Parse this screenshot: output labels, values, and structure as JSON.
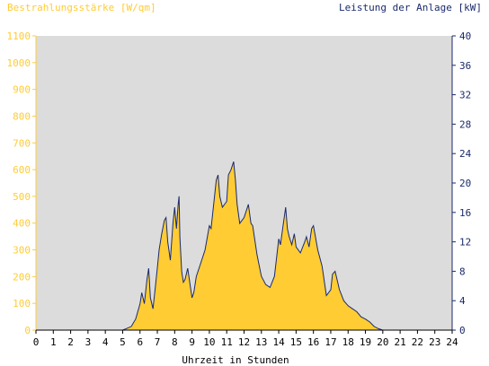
{
  "colors": {
    "left_axis": "#ffcc33",
    "right_axis": "#1a2a6c",
    "fill": "#ffcc33",
    "line": "#1a2a6c",
    "plot_bg": "#dcdcdc",
    "x_axis": "#000000"
  },
  "chart_data": {
    "type": "area",
    "title": "",
    "left_ylabel": "Bestrahlungsstärke [W/qm]",
    "right_ylabel": "Leistung der Anlage [kW]",
    "xlabel": "Uhrzeit in Stunden",
    "xlim": [
      0,
      24
    ],
    "ylim_left": [
      0,
      1100
    ],
    "ylim_right": [
      0,
      40
    ],
    "x_ticks": [
      "0",
      "1",
      "2",
      "3",
      "4",
      "5",
      "6",
      "7",
      "8",
      "9",
      "10",
      "11",
      "12",
      "13",
      "14",
      "15",
      "16",
      "17",
      "18",
      "19",
      "20",
      "21",
      "22",
      "23",
      "24"
    ],
    "y_left_ticks": [
      "0",
      "100",
      "200",
      "300",
      "400",
      "500",
      "600",
      "700",
      "800",
      "900",
      "1000",
      "1100"
    ],
    "y_right_ticks": [
      "0",
      "4",
      "8",
      "12",
      "16",
      "20",
      "24",
      "28",
      "32",
      "36",
      "40"
    ],
    "grid": false,
    "series": [
      {
        "name": "Bestrahlungsstärke [W/qm]",
        "unit": "W/qm",
        "x": [
          0,
          5.0,
          5.2,
          5.5,
          5.75,
          6.0,
          6.1,
          6.25,
          6.4,
          6.5,
          6.6,
          6.75,
          6.9,
          7.0,
          7.1,
          7.25,
          7.4,
          7.5,
          7.6,
          7.75,
          7.9,
          8.0,
          8.1,
          8.2,
          8.25,
          8.3,
          8.4,
          8.5,
          8.6,
          8.75,
          9.0,
          9.1,
          9.25,
          9.5,
          9.75,
          10.0,
          10.1,
          10.25,
          10.4,
          10.5,
          10.6,
          10.75,
          11.0,
          11.1,
          11.25,
          11.4,
          11.5,
          11.6,
          11.75,
          12.0,
          12.1,
          12.25,
          12.4,
          12.5,
          12.75,
          13.0,
          13.25,
          13.5,
          13.75,
          14.0,
          14.1,
          14.25,
          14.4,
          14.5,
          14.6,
          14.75,
          14.9,
          15.0,
          15.25,
          15.5,
          15.6,
          15.75,
          15.9,
          16.0,
          16.25,
          16.5,
          16.75,
          17.0,
          17.1,
          17.25,
          17.5,
          17.75,
          18.0,
          18.25,
          18.5,
          18.75,
          19.0,
          19.25,
          19.5,
          19.75,
          20.0,
          24
        ],
        "values": [
          0,
          0,
          5,
          15,
          40,
          100,
          140,
          100,
          190,
          230,
          120,
          80,
          170,
          230,
          300,
          360,
          410,
          420,
          330,
          260,
          400,
          460,
          380,
          470,
          500,
          350,
          220,
          180,
          190,
          230,
          120,
          140,
          200,
          250,
          300,
          390,
          380,
          470,
          560,
          580,
          500,
          460,
          480,
          580,
          600,
          630,
          560,
          470,
          400,
          420,
          440,
          470,
          400,
          390,
          280,
          200,
          170,
          160,
          200,
          340,
          320,
          390,
          460,
          380,
          350,
          320,
          360,
          310,
          290,
          330,
          350,
          310,
          380,
          390,
          300,
          240,
          130,
          150,
          210,
          220,
          150,
          110,
          90,
          80,
          70,
          50,
          40,
          30,
          15,
          5,
          0,
          0
        ]
      },
      {
        "name": "Leistung der Anlage [kW]",
        "unit": "kW",
        "x": [
          0,
          5.0,
          5.2,
          5.5,
          5.75,
          6.0,
          6.1,
          6.25,
          6.4,
          6.5,
          6.6,
          6.75,
          6.9,
          7.0,
          7.1,
          7.25,
          7.4,
          7.5,
          7.6,
          7.75,
          7.9,
          8.0,
          8.1,
          8.2,
          8.25,
          8.3,
          8.4,
          8.5,
          8.6,
          8.75,
          9.0,
          9.1,
          9.25,
          9.5,
          9.75,
          10.0,
          10.1,
          10.25,
          10.4,
          10.5,
          10.6,
          10.75,
          11.0,
          11.1,
          11.25,
          11.4,
          11.5,
          11.6,
          11.75,
          12.0,
          12.1,
          12.25,
          12.4,
          12.5,
          12.75,
          13.0,
          13.25,
          13.5,
          13.75,
          14.0,
          14.1,
          14.25,
          14.4,
          14.5,
          14.6,
          14.75,
          14.9,
          15.0,
          15.25,
          15.5,
          15.6,
          15.75,
          15.9,
          16.0,
          16.25,
          16.5,
          16.75,
          17.0,
          17.1,
          17.25,
          17.5,
          17.75,
          18.0,
          18.25,
          18.5,
          18.75,
          19.0,
          19.25,
          19.5,
          19.75,
          20.0,
          24
        ],
        "values": [
          0,
          0,
          0.2,
          0.5,
          1.5,
          3.6,
          5.1,
          3.6,
          6.9,
          8.4,
          4.4,
          2.9,
          6.2,
          8.4,
          10.9,
          13.1,
          14.9,
          15.3,
          12.0,
          9.5,
          14.5,
          16.7,
          13.8,
          17.1,
          18.2,
          12.7,
          8.0,
          6.5,
          6.9,
          8.4,
          4.4,
          5.1,
          7.3,
          9.1,
          10.9,
          14.2,
          13.8,
          17.1,
          20.4,
          21.1,
          18.2,
          16.7,
          17.5,
          21.1,
          21.8,
          22.9,
          20.4,
          17.1,
          14.5,
          15.3,
          16.0,
          17.1,
          14.5,
          14.2,
          10.2,
          7.3,
          6.2,
          5.8,
          7.3,
          12.4,
          11.6,
          14.2,
          16.7,
          13.8,
          12.7,
          11.6,
          13.1,
          11.3,
          10.5,
          12.0,
          12.7,
          11.3,
          13.8,
          14.2,
          10.9,
          8.7,
          4.7,
          5.5,
          7.6,
          8.0,
          5.5,
          4.0,
          3.3,
          2.9,
          2.5,
          1.8,
          1.5,
          1.1,
          0.5,
          0.2,
          0,
          0
        ]
      }
    ]
  }
}
